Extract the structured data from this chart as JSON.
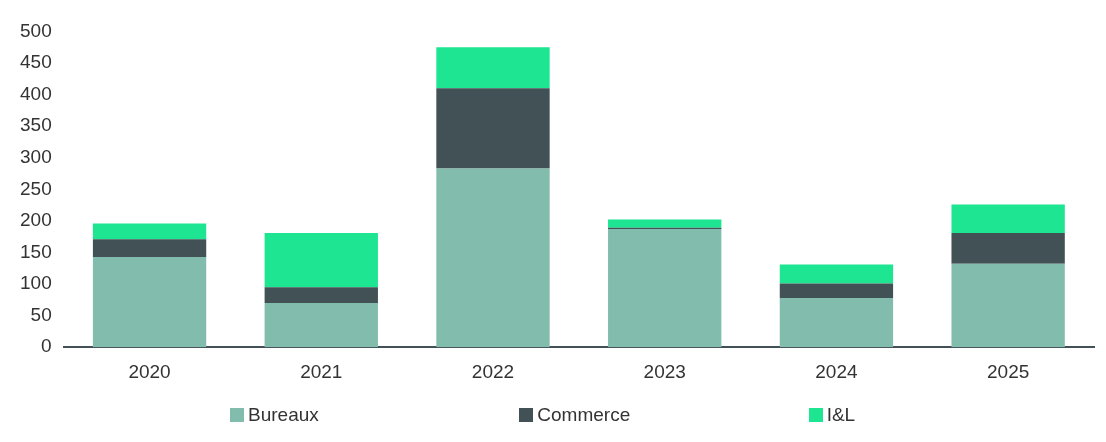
{
  "chart_data": {
    "type": "bar",
    "stacked": true,
    "categories": [
      "2020",
      "2021",
      "2022",
      "2023",
      "2024",
      "2025"
    ],
    "series": [
      {
        "name": "Bureaux",
        "color": "#82bcad",
        "values": [
          143,
          70,
          283,
          187,
          78,
          132
        ]
      },
      {
        "name": "Commerce",
        "color": "#425155",
        "values": [
          28,
          25,
          127,
          2,
          23,
          49
        ]
      },
      {
        "name": "I&L",
        "color": "#1de592",
        "values": [
          25,
          86,
          65,
          13,
          30,
          45
        ]
      }
    ],
    "ylim": [
      0,
      500
    ],
    "yticks": [
      0,
      50,
      100,
      150,
      200,
      250,
      300,
      350,
      400,
      450,
      500
    ],
    "grid": false,
    "legend": "bottom"
  }
}
